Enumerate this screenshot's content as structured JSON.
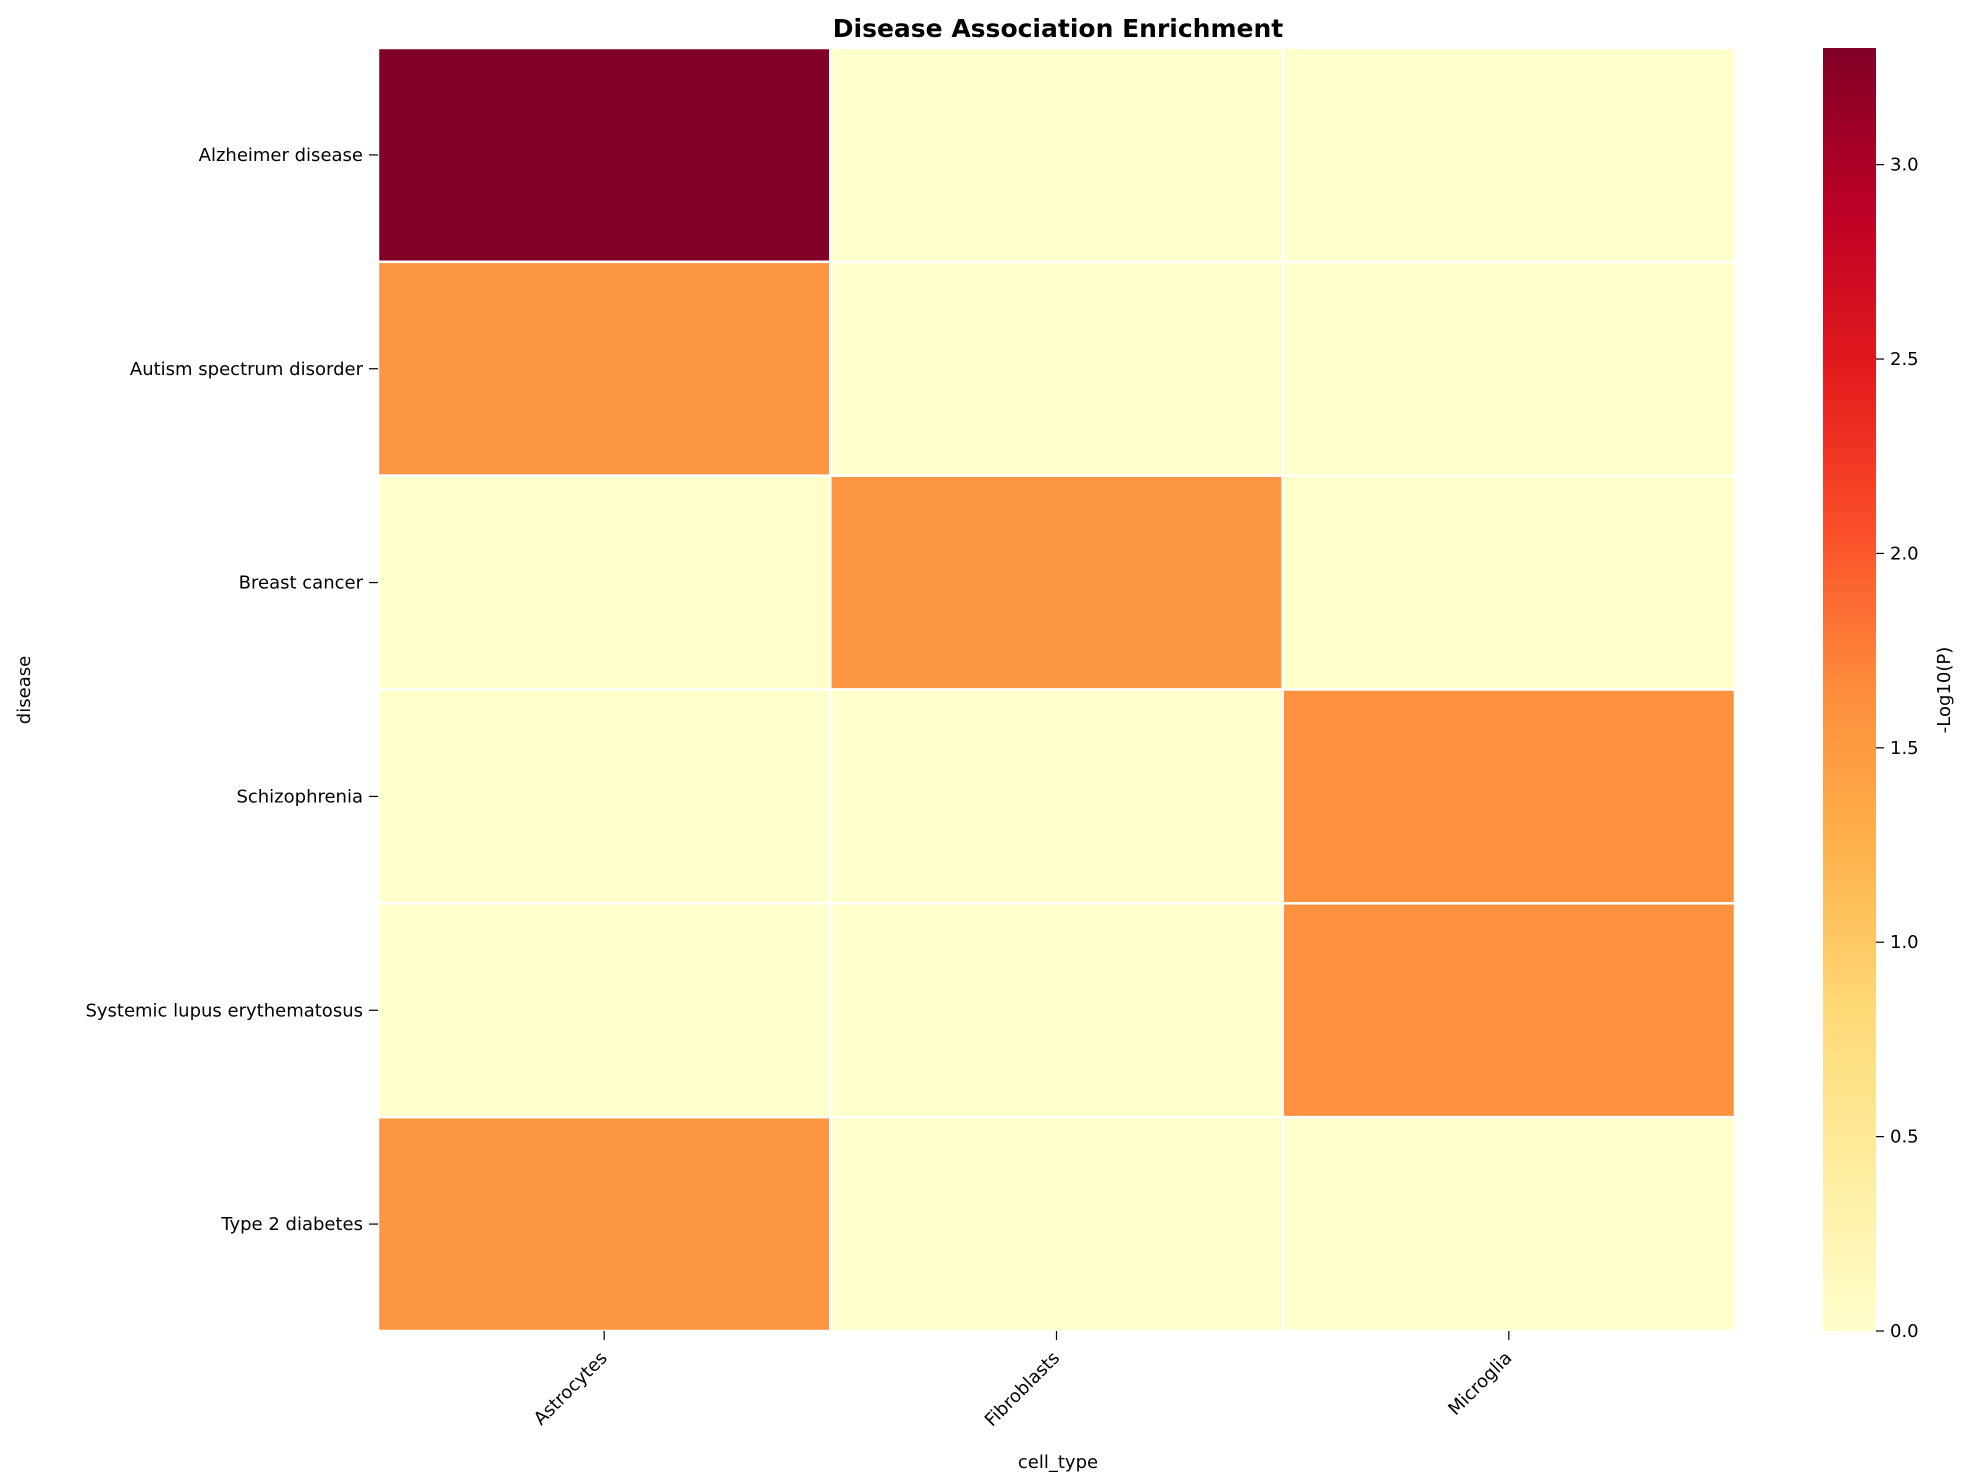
{
  "chart_data": {
    "type": "heatmap",
    "title": "Disease Association Enrichment",
    "xlabel": "cell_type",
    "ylabel": "disease",
    "x_categories": [
      "Astrocytes",
      "Fibroblasts",
      "Microglia"
    ],
    "y_categories": [
      "Alzheimer disease",
      "Autism spectrum disorder",
      "Breast cancer",
      "Schizophrenia",
      "Systemic lupus erythematosus",
      "Type 2 diabetes"
    ],
    "values": [
      [
        3.3,
        0.0,
        0.0
      ],
      [
        1.55,
        0.0,
        0.0
      ],
      [
        0.0,
        1.55,
        0.0
      ],
      [
        0.0,
        0.0,
        1.6
      ],
      [
        0.0,
        0.0,
        1.6
      ],
      [
        1.55,
        0.0,
        0.0
      ]
    ],
    "colorbar": {
      "label": "-Log10(P)",
      "range": [
        0.0,
        3.3
      ],
      "ticks": [
        "0.0",
        "0.5",
        "1.0",
        "1.5",
        "2.0",
        "2.5",
        "3.0"
      ],
      "colormap": [
        "#ffffcc",
        "#ffeda0",
        "#fed976",
        "#feb24c",
        "#fd8d3c",
        "#fc4e2a",
        "#e31a1c",
        "#bd0026",
        "#800026"
      ]
    }
  }
}
